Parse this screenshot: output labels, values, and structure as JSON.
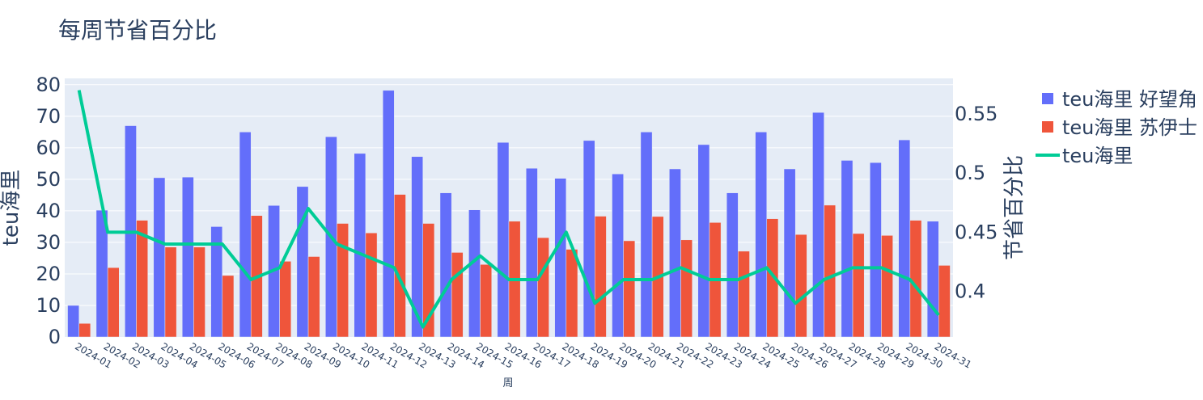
{
  "chart_data": {
    "type": "bar",
    "title": "每周节省百分比",
    "xlabel": "周",
    "ylabel": "teu海里",
    "y2label": "节省百分比",
    "categories": [
      "2024-01",
      "2024-02",
      "2024-03",
      "2024-04",
      "2024-05",
      "2024-06",
      "2024-07",
      "2024-08",
      "2024-09",
      "2024-10",
      "2024-11",
      "2024-12",
      "2024-13",
      "2024-14",
      "2024-15",
      "2024-16",
      "2024-17",
      "2024-18",
      "2024-19",
      "2024-20",
      "2024-21",
      "2024-22",
      "2024-23",
      "2024-24",
      "2024-25",
      "2024-26",
      "2024-27",
      "2024-28",
      "2024-29",
      "2024-30",
      "2024-31"
    ],
    "ylim": [
      0,
      82
    ],
    "yticks": [
      0,
      10,
      20,
      30,
      40,
      50,
      60,
      70,
      80
    ],
    "y2lim": [
      0.3615,
      0.58
    ],
    "y2ticks": [
      0.4,
      0.45,
      0.5,
      0.55
    ],
    "y2ticklabels": [
      "0.4",
      "0.45",
      "0.5",
      "0.55"
    ],
    "series": [
      {
        "name": "teu海里 好望角",
        "type": "bar",
        "axis": "y",
        "color": "#636efa",
        "values": [
          10,
          40.2,
          67,
          50.5,
          50.7,
          35,
          65,
          41.7,
          47.7,
          63.5,
          58.2,
          78.2,
          57.2,
          45.7,
          40.3,
          61.7,
          53.5,
          50.3,
          62.3,
          51.7,
          65,
          53.3,
          61,
          45.7,
          65,
          53.3,
          71.2,
          56,
          55.3,
          62.5,
          36.7
        ]
      },
      {
        "name": "teu海里 苏伊士",
        "type": "bar",
        "axis": "y",
        "color": "#ef553b",
        "values": [
          4.3,
          22,
          37,
          28.5,
          28.5,
          19.5,
          38.5,
          24,
          25.5,
          36,
          33,
          45.2,
          36,
          26.8,
          23,
          36.7,
          31.5,
          27.8,
          38.3,
          30.5,
          38.2,
          30.8,
          36.3,
          27.2,
          37.5,
          32.5,
          41.8,
          32.8,
          32.2,
          37,
          22.7
        ]
      },
      {
        "name": "teu海里",
        "type": "line",
        "axis": "y2",
        "color": "#00cc96",
        "values": [
          0.57,
          0.45,
          0.45,
          0.44,
          0.44,
          0.44,
          0.41,
          0.42,
          0.47,
          0.44,
          0.43,
          0.42,
          0.37,
          0.41,
          0.43,
          0.41,
          0.41,
          0.45,
          0.39,
          0.41,
          0.41,
          0.42,
          0.41,
          0.41,
          0.42,
          0.39,
          0.41,
          0.42,
          0.42,
          0.41,
          0.38
        ]
      }
    ],
    "grid": true,
    "legend_position": "right"
  }
}
